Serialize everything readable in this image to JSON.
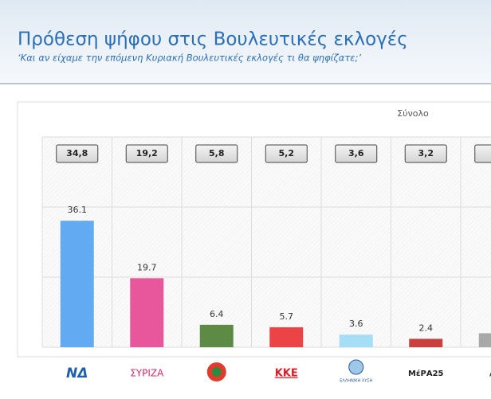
{
  "chart_data": {
    "type": "bar",
    "title": "Πρόθεση ψήφου στις Βουλευτικές εκλογές",
    "subtitle": "‘Και αν είχαμε την επόμενη Κυριακή Βουλευτικές εκλογές τι θα ψηφίζατε;’",
    "panel_label": "Σύνολο",
    "categories": [
      "ΝΔ",
      "ΣΥΡΙΖΑ",
      null,
      "ΚΚΕ",
      "ΕΛΛΗΝΙΚΗ ΛΥΣΗ",
      "ΜέΡΑ25",
      "Λο"
    ],
    "previous_labels": [
      "34,8",
      "19,2",
      "5,8",
      "5,2",
      "3,6",
      "3,2"
    ],
    "values": [
      36.1,
      19.7,
      6.4,
      5.7,
      3.6,
      2.4,
      4
    ],
    "colors": [
      "#62aaf2",
      "#e8569c",
      "#5d8a45",
      "#ec4446",
      "#a6def6",
      "#c8413f",
      "#a9a9a9"
    ],
    "ylim": [
      0,
      60
    ],
    "yticks": [
      0,
      20,
      40,
      60
    ],
    "grid": true
  }
}
